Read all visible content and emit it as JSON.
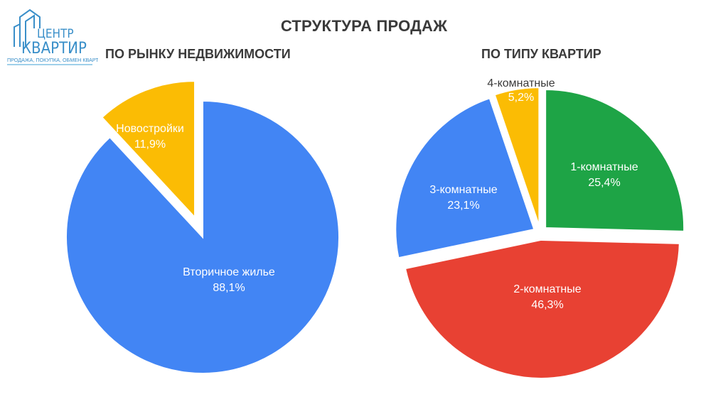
{
  "logo": {
    "line1": "ЦЕНТР",
    "line2": "КВАРТИР",
    "tagline": "ПРОДАЖА, ПОКУПКА, ОБМЕН КВАРТИР"
  },
  "title": "СТРУКТУРА ПРОДАЖ",
  "colors": {
    "blue": "#4285f4",
    "yellow": "#fbbc04",
    "green": "#1ea446",
    "red": "#e84133"
  },
  "chart_data": [
    {
      "type": "pie",
      "title": "ПО РЫНКУ НЕДВИЖИМОСТИ",
      "slices": [
        {
          "label": "Вторичное жилье",
          "value": 88.1,
          "display": "88,1%",
          "color": "#4285f4"
        },
        {
          "label": "Новостройки",
          "value": 11.9,
          "display": "11,9%",
          "color": "#fbbc04",
          "exploded": true
        }
      ]
    },
    {
      "type": "pie",
      "title": "ПО ТИПУ КВАРТИР",
      "slices": [
        {
          "label": "1-комнатные",
          "value": 25.4,
          "display": "25,4%",
          "color": "#1ea446"
        },
        {
          "label": "2-комнатные",
          "value": 46.3,
          "display": "46,3%",
          "color": "#e84133"
        },
        {
          "label": "3-комнатные",
          "value": 23.1,
          "display": "23,1%",
          "color": "#4285f4"
        },
        {
          "label": "4-комнатные",
          "value": 5.2,
          "display": "5,2%",
          "color": "#fbbc04"
        }
      ]
    }
  ]
}
